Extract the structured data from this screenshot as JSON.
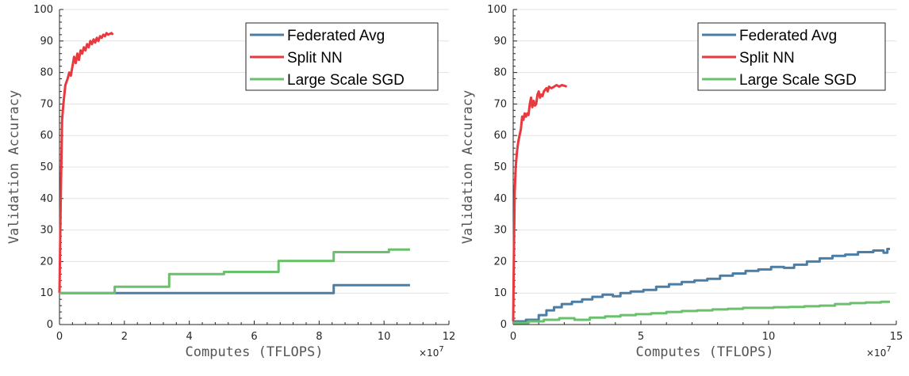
{
  "chart_data": [
    {
      "type": "line",
      "xlabel": "Computes (TFLOPS)",
      "ylabel": "Validation Accuracy",
      "x_exponent_label": "×10",
      "x_exponent_power": "7",
      "xlim": [
        0,
        12
      ],
      "ylim": [
        0,
        100
      ],
      "x_ticks": [
        0,
        2,
        4,
        6,
        8,
        10,
        12
      ],
      "y_ticks": [
        0,
        10,
        20,
        30,
        40,
        50,
        60,
        70,
        80,
        90,
        100
      ],
      "grid": "horizontal",
      "legend_position": "top-right",
      "series": [
        {
          "name": "Federated Avg",
          "color": "#4a7ea6",
          "step": true,
          "points": [
            [
              0,
              10
            ],
            [
              8.45,
              10
            ],
            [
              8.45,
              12.5
            ],
            [
              10.8,
              12.5
            ]
          ]
        },
        {
          "name": "Split NN",
          "color": "#e8393f",
          "step": false,
          "points": [
            [
              0,
              10
            ],
            [
              0.04,
              40
            ],
            [
              0.08,
              65
            ],
            [
              0.12,
              70
            ],
            [
              0.18,
              76
            ],
            [
              0.25,
              78
            ],
            [
              0.3,
              80
            ],
            [
              0.35,
              79
            ],
            [
              0.4,
              82
            ],
            [
              0.45,
              85
            ],
            [
              0.5,
              83
            ],
            [
              0.55,
              86
            ],
            [
              0.6,
              84
            ],
            [
              0.65,
              87
            ],
            [
              0.7,
              86
            ],
            [
              0.75,
              88
            ],
            [
              0.8,
              87
            ],
            [
              0.85,
              89
            ],
            [
              0.9,
              88
            ],
            [
              0.95,
              90
            ],
            [
              1.0,
              89
            ],
            [
              1.05,
              90.5
            ],
            [
              1.1,
              89.5
            ],
            [
              1.15,
              91
            ],
            [
              1.2,
              90
            ],
            [
              1.25,
              91.5
            ],
            [
              1.3,
              91
            ],
            [
              1.35,
              92
            ],
            [
              1.4,
              91.5
            ],
            [
              1.45,
              92.5
            ],
            [
              1.5,
              92
            ],
            [
              1.6,
              92.5
            ],
            [
              1.65,
              92
            ]
          ]
        },
        {
          "name": "Large Scale SGD",
          "color": "#6ac06b",
          "step": true,
          "points": [
            [
              0,
              10
            ],
            [
              1.7,
              10
            ],
            [
              1.7,
              12
            ],
            [
              3.38,
              12
            ],
            [
              3.38,
              16
            ],
            [
              5.07,
              16
            ],
            [
              5.07,
              16.7
            ],
            [
              6.75,
              16.7
            ],
            [
              6.75,
              20.2
            ],
            [
              8.45,
              20.2
            ],
            [
              8.45,
              23
            ],
            [
              10.15,
              23
            ],
            [
              10.15,
              23.8
            ],
            [
              10.8,
              23.8
            ]
          ]
        }
      ]
    },
    {
      "type": "line",
      "xlabel": "Computes (TFLOPS)",
      "ylabel": "Validation Accuracy",
      "x_exponent_label": "×10",
      "x_exponent_power": "7",
      "xlim": [
        0,
        15
      ],
      "ylim": [
        0,
        100
      ],
      "x_ticks": [
        0,
        5,
        10,
        15
      ],
      "y_ticks": [
        0,
        10,
        20,
        30,
        40,
        50,
        60,
        70,
        80,
        90,
        100
      ],
      "grid": "horizontal",
      "legend_position": "top-right",
      "series": [
        {
          "name": "Federated Avg",
          "color": "#4a7ea6",
          "step": true,
          "points": [
            [
              0,
              1
            ],
            [
              0.5,
              1
            ],
            [
              0.5,
              1.5
            ],
            [
              1.0,
              1.5
            ],
            [
              1.0,
              3
            ],
            [
              1.3,
              3
            ],
            [
              1.3,
              4.5
            ],
            [
              1.6,
              4.5
            ],
            [
              1.6,
              5.5
            ],
            [
              1.9,
              5.5
            ],
            [
              1.9,
              6.5
            ],
            [
              2.3,
              6.5
            ],
            [
              2.3,
              7.2
            ],
            [
              2.7,
              7.2
            ],
            [
              2.7,
              8
            ],
            [
              3.1,
              8
            ],
            [
              3.1,
              8.8
            ],
            [
              3.5,
              8.8
            ],
            [
              3.5,
              9.5
            ],
            [
              3.9,
              9.5
            ],
            [
              3.9,
              9
            ],
            [
              4.2,
              9
            ],
            [
              4.2,
              10
            ],
            [
              4.6,
              10
            ],
            [
              4.6,
              10.5
            ],
            [
              5.1,
              10.5
            ],
            [
              5.1,
              11
            ],
            [
              5.6,
              11
            ],
            [
              5.6,
              12
            ],
            [
              6.1,
              12
            ],
            [
              6.1,
              12.8
            ],
            [
              6.6,
              12.8
            ],
            [
              6.6,
              13.5
            ],
            [
              7.1,
              13.5
            ],
            [
              7.1,
              14
            ],
            [
              7.6,
              14
            ],
            [
              7.6,
              14.5
            ],
            [
              8.1,
              14.5
            ],
            [
              8.1,
              15.5
            ],
            [
              8.6,
              15.5
            ],
            [
              8.6,
              16.2
            ],
            [
              9.1,
              16.2
            ],
            [
              9.1,
              17
            ],
            [
              9.6,
              17
            ],
            [
              9.6,
              17.5
            ],
            [
              10.1,
              17.5
            ],
            [
              10.1,
              18.3
            ],
            [
              10.6,
              18.3
            ],
            [
              10.6,
              18
            ],
            [
              11.0,
              18
            ],
            [
              11.0,
              19
            ],
            [
              11.5,
              19
            ],
            [
              11.5,
              20
            ],
            [
              12.0,
              20
            ],
            [
              12.0,
              21
            ],
            [
              12.5,
              21
            ],
            [
              12.5,
              21.8
            ],
            [
              13.0,
              21.8
            ],
            [
              13.0,
              22.2
            ],
            [
              13.5,
              22.2
            ],
            [
              13.5,
              23
            ],
            [
              14.1,
              23
            ],
            [
              14.1,
              23.5
            ],
            [
              14.5,
              23.5
            ],
            [
              14.5,
              22.8
            ],
            [
              14.65,
              22.8
            ],
            [
              14.65,
              24
            ],
            [
              14.75,
              24
            ]
          ]
        },
        {
          "name": "Split NN",
          "color": "#e8393f",
          "step": false,
          "points": [
            [
              0,
              1
            ],
            [
              0.03,
              25
            ],
            [
              0.06,
              42
            ],
            [
              0.1,
              50
            ],
            [
              0.15,
              55
            ],
            [
              0.2,
              58
            ],
            [
              0.25,
              60
            ],
            [
              0.3,
              62
            ],
            [
              0.35,
              66
            ],
            [
              0.4,
              65
            ],
            [
              0.45,
              67
            ],
            [
              0.5,
              66
            ],
            [
              0.55,
              67
            ],
            [
              0.6,
              66.5
            ],
            [
              0.65,
              70
            ],
            [
              0.7,
              72
            ],
            [
              0.75,
              69
            ],
            [
              0.8,
              71
            ],
            [
              0.85,
              69.5
            ],
            [
              0.9,
              70
            ],
            [
              0.95,
              73
            ],
            [
              1.0,
              74
            ],
            [
              1.05,
              72
            ],
            [
              1.1,
              73
            ],
            [
              1.15,
              72.5
            ],
            [
              1.2,
              74
            ],
            [
              1.3,
              75
            ],
            [
              1.35,
              74
            ],
            [
              1.4,
              75.5
            ],
            [
              1.5,
              75
            ],
            [
              1.6,
              75.5
            ],
            [
              1.7,
              76
            ],
            [
              1.8,
              75.5
            ],
            [
              1.9,
              76
            ],
            [
              2.0,
              75.8
            ],
            [
              2.1,
              75.5
            ]
          ]
        },
        {
          "name": "Large Scale SGD",
          "color": "#6ac06b",
          "step": true,
          "points": [
            [
              0,
              0.5
            ],
            [
              0.6,
              0.5
            ],
            [
              0.6,
              1
            ],
            [
              1.2,
              1
            ],
            [
              1.2,
              1.5
            ],
            [
              1.8,
              1.5
            ],
            [
              1.8,
              2
            ],
            [
              2.4,
              2
            ],
            [
              2.4,
              1.5
            ],
            [
              3.0,
              1.5
            ],
            [
              3.0,
              2.2
            ],
            [
              3.6,
              2.2
            ],
            [
              3.6,
              2.6
            ],
            [
              4.2,
              2.6
            ],
            [
              4.2,
              3
            ],
            [
              4.8,
              3
            ],
            [
              4.8,
              3.3
            ],
            [
              5.4,
              3.3
            ],
            [
              5.4,
              3.6
            ],
            [
              6.0,
              3.6
            ],
            [
              6.0,
              4
            ],
            [
              6.6,
              4
            ],
            [
              6.6,
              4.3
            ],
            [
              7.2,
              4.3
            ],
            [
              7.2,
              4.5
            ],
            [
              7.8,
              4.5
            ],
            [
              7.8,
              4.8
            ],
            [
              8.4,
              4.8
            ],
            [
              8.4,
              5
            ],
            [
              9.0,
              5
            ],
            [
              9.0,
              5.3
            ],
            [
              10.2,
              5.3
            ],
            [
              10.2,
              5.5
            ],
            [
              10.8,
              5.5
            ],
            [
              10.8,
              5.6
            ],
            [
              11.4,
              5.6
            ],
            [
              11.4,
              5.8
            ],
            [
              12.0,
              5.8
            ],
            [
              12.0,
              6
            ],
            [
              12.6,
              6
            ],
            [
              12.6,
              6.5
            ],
            [
              13.2,
              6.5
            ],
            [
              13.2,
              6.8
            ],
            [
              13.8,
              6.8
            ],
            [
              13.8,
              7
            ],
            [
              14.4,
              7
            ],
            [
              14.4,
              7.2
            ],
            [
              14.75,
              7.2
            ]
          ]
        }
      ]
    }
  ]
}
